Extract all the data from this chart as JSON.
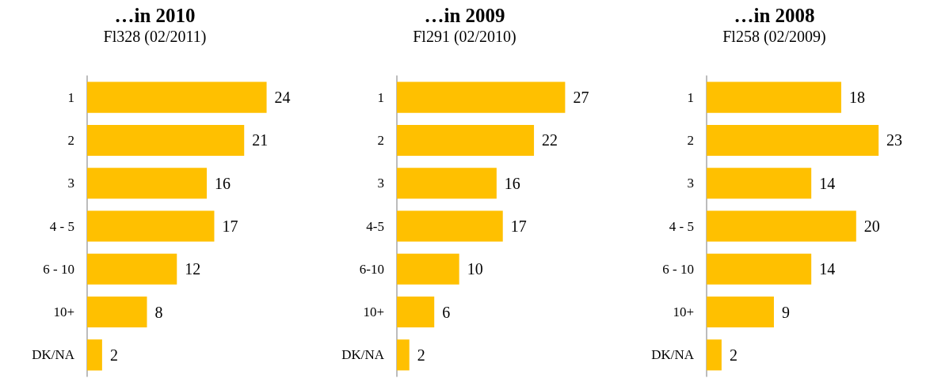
{
  "chart_data": [
    {
      "type": "bar",
      "orientation": "horizontal",
      "title": "…in 2010",
      "subtitle": "Fl328 (02/2011)",
      "categories": [
        "1",
        "2",
        "3",
        "4 - 5",
        "6 - 10",
        "10+",
        "DK/NA"
      ],
      "values": [
        24,
        21,
        16,
        17,
        12,
        8,
        2
      ],
      "color": "#ffc000",
      "data_labels": true,
      "tick_labels": "y"
    },
    {
      "type": "bar",
      "orientation": "horizontal",
      "title": "…in 2009",
      "subtitle": "Fl291 (02/2010)",
      "categories": [
        "1",
        "2",
        "3",
        "4-5",
        "6-10",
        "10+",
        "DK/NA"
      ],
      "values": [
        27,
        22,
        16,
        17,
        10,
        6,
        2
      ],
      "color": "#ffc000",
      "data_labels": true,
      "tick_labels": "y"
    },
    {
      "type": "bar",
      "orientation": "horizontal",
      "title": "…in 2008",
      "subtitle": "Fl258 (02/2009)",
      "categories": [
        "1",
        "2",
        "3",
        "4 - 5",
        "6 - 10",
        "10+",
        "DK/NA"
      ],
      "values": [
        18,
        23,
        14,
        20,
        14,
        9,
        2
      ],
      "color": "#ffc000",
      "data_labels": true,
      "tick_labels": "y"
    }
  ]
}
